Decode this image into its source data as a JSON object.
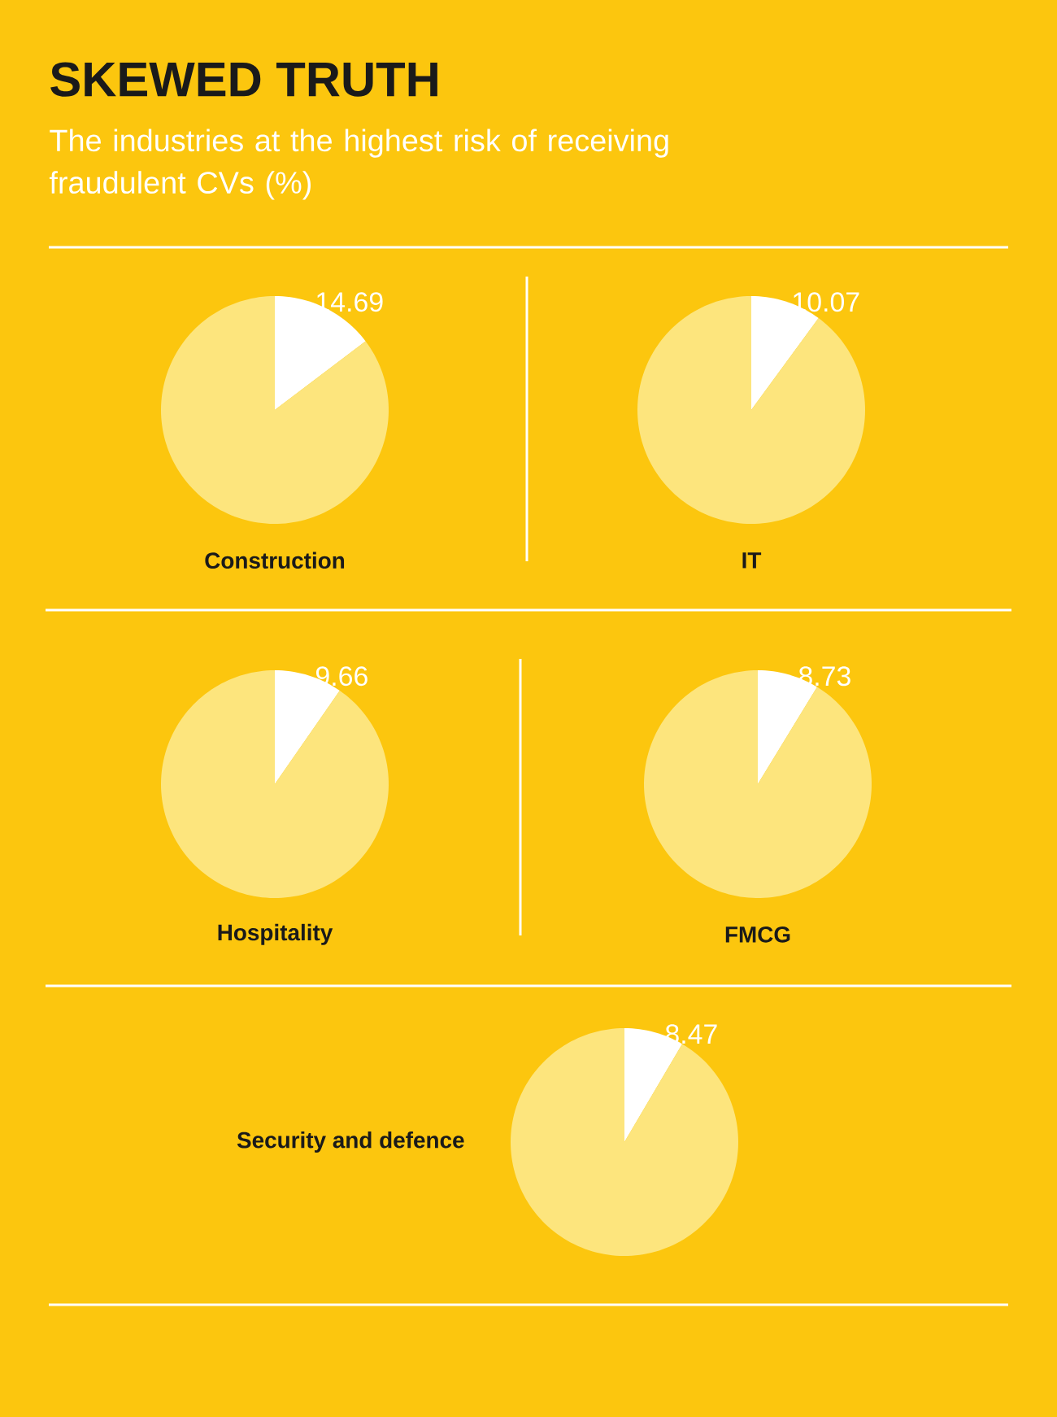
{
  "chart_data": [
    {
      "type": "other",
      "title": "SKEWED TRUTH",
      "subtitle": "The industries at the highest risk of receiving fraudulent CVs (%)"
    },
    {
      "type": "pie",
      "title": "Construction",
      "categories": [
        null,
        null
      ],
      "values": [
        14.69,
        85.31
      ],
      "colors": [
        "#ffffff",
        "#fde57d"
      ],
      "value_labels": [
        "14.69",
        null
      ]
    },
    {
      "type": "pie",
      "title": "IT",
      "categories": [
        null,
        null
      ],
      "values": [
        10.07,
        89.93
      ],
      "colors": [
        "#ffffff",
        "#fde57d"
      ],
      "value_labels": [
        "10.07",
        null
      ]
    },
    {
      "type": "pie",
      "title": "Hospitality",
      "categories": [
        null,
        null
      ],
      "values": [
        9.66,
        90.34
      ],
      "colors": [
        "#ffffff",
        "#fde57d"
      ],
      "value_labels": [
        "9.66",
        null
      ]
    },
    {
      "type": "pie",
      "title": "FMCG",
      "categories": [
        null,
        null
      ],
      "values": [
        8.73,
        91.27
      ],
      "colors": [
        "#ffffff",
        "#fde57d"
      ],
      "value_labels": [
        "8.73",
        null
      ]
    },
    {
      "type": "pie",
      "title": "Security and defence",
      "categories": [
        null,
        null
      ],
      "values": [
        8.47,
        91.53
      ],
      "colors": [
        "#ffffff",
        "#fde57d"
      ],
      "value_labels": [
        "8.47",
        null
      ]
    }
  ]
}
